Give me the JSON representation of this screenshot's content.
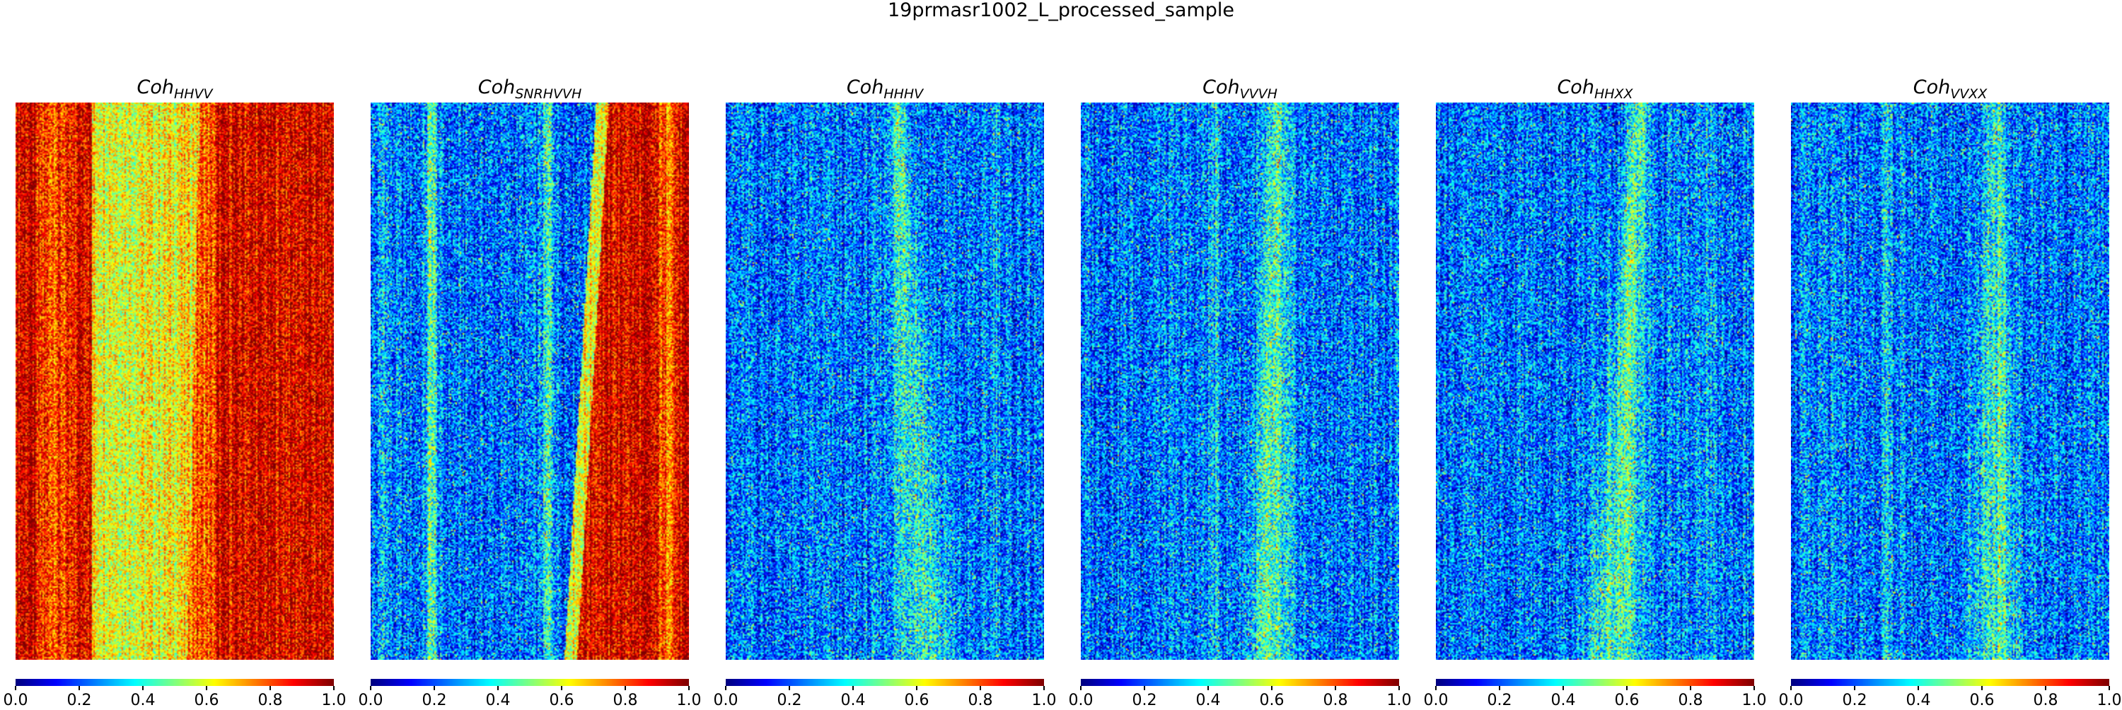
{
  "figure": {
    "title": "19prmasr1002_L_processed_sample"
  },
  "chart_data": {
    "type": "heatmap",
    "title": "19prmasr1002_L_processed_sample",
    "colormap": "jet",
    "colormap_stops": [
      "#00007f",
      "#0000ff",
      "#00a2ff",
      "#4dffaa",
      "#ffea00",
      "#ff4800",
      "#7f0000"
    ],
    "clim": [
      0,
      1
    ],
    "colorbar_ticks": [
      "0.0",
      "0.2",
      "0.4",
      "0.6",
      "0.8",
      "1.0"
    ],
    "panels": [
      {
        "title_base": "Coh",
        "title_sub": "HHVV",
        "dominant": "high coherence (yellow–red), dark red bands at left and right, yellow-green centre"
      },
      {
        "title_base": "Coh",
        "title_sub": "SNRHVVH",
        "dominant": "low coherence (blue) with high coherence (red) band right of centre"
      },
      {
        "title_base": "Coh",
        "title_sub": "HHHV",
        "dominant": "low coherence (blue) with faint cyan-green streak"
      },
      {
        "title_base": "Coh",
        "title_sub": "VVVH",
        "dominant": "low coherence (blue) with faint cyan-green streak"
      },
      {
        "title_base": "Coh",
        "title_sub": "HHXX",
        "dominant": "low coherence (blue) with faint cyan-green streak"
      },
      {
        "title_base": "Coh",
        "title_sub": "VVXX",
        "dominant": "low coherence (blue) with faint cyan-green streak"
      }
    ]
  }
}
